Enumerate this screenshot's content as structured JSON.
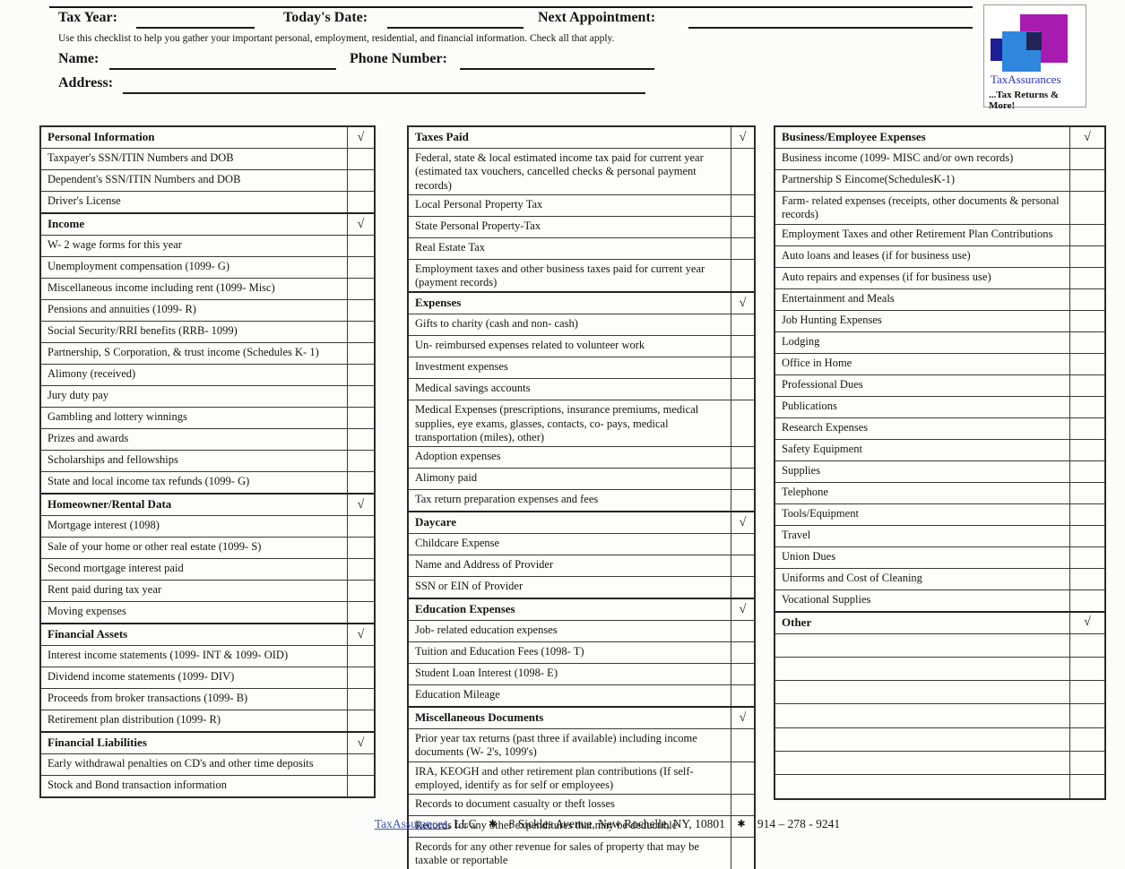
{
  "check_symbol": "√",
  "header": {
    "tax_year_label": "Tax Year:",
    "todays_date_label": "Today's Date:",
    "next_appointment_label": "Next Appointment:",
    "instructions": "Use this checklist to help you gather your important personal, employment, residential, and financial information.  Check all that apply.",
    "name_label": "Name:",
    "phone_label": "Phone Number:",
    "address_label": "Address:"
  },
  "logo": {
    "company": "TaxAssurances",
    "tagline": "...Tax Returns & More!",
    "colors": {
      "magenta": "#a81bb0",
      "blue": "#2e86dd",
      "navy": "#1d1d96",
      "overlap": "#232355"
    }
  },
  "columns": [
    {
      "sections": [
        {
          "title": "Personal Information",
          "checked": true,
          "items": [
            "Taxpayer's SSN/ITIN Numbers and DOB",
            "Dependent's SSN/ITIN Numbers and DOB",
            "Driver's License"
          ]
        },
        {
          "title": "Income",
          "checked": true,
          "items": [
            "W- 2 wage forms for this year",
            "Unemployment compensation (1099- G)",
            "Miscellaneous income including rent (1099- Misc)",
            "Pensions and annuities (1099- R)",
            "Social Security/RRI benefits (RRB- 1099)",
            "Partnership, S Corporation, & trust income (Schedules K- 1)",
            "Alimony (received)",
            "Jury duty pay",
            "Gambling and lottery winnings",
            "Prizes and awards",
            "Scholarships and fellowships",
            "State and local income tax refunds (1099- G)"
          ]
        },
        {
          "title": "Homeowner/Rental Data",
          "checked": true,
          "items": [
            "Mortgage interest (1098)",
            "Sale of your home or other real estate (1099- S)",
            "Second mortgage interest paid",
            "Rent paid during tax year",
            "Moving expenses"
          ]
        },
        {
          "title": "Financial Assets",
          "checked": true,
          "items": [
            "Interest income statements (1099- INT & 1099- OID)",
            "Dividend income statements (1099- DIV)",
            "Proceeds from broker transactions (1099- B)",
            "Retirement plan distribution (1099- R)"
          ]
        },
        {
          "title": "Financial Liabilities",
          "checked": true,
          "items": [
            "Early withdrawal penalties on CD's and other time deposits",
            "Stock and Bond transaction information"
          ]
        }
      ]
    },
    {
      "sections": [
        {
          "title": "Taxes Paid",
          "checked": true,
          "items": [
            "Federal, state & local estimated income tax paid for current year (estimated tax vouchers, cancelled checks & personal payment records)",
            "Local Personal Property Tax",
            "State Personal Property-Tax",
            "Real Estate Tax",
            "Employment taxes and other business taxes paid for current year (payment records)"
          ]
        },
        {
          "title": "Expenses",
          "checked": true,
          "items": [
            "Gifts to charity (cash and non- cash)",
            "Un- reimbursed expenses related to volunteer work",
            "Investment expenses",
            "Medical savings accounts",
            "Medical Expenses (prescriptions, insurance premiums, medical supplies, eye exams, glasses, contacts, co- pays, medical transportation (miles), other)",
            "Adoption expenses",
            "Alimony paid",
            "Tax return preparation expenses and fees"
          ]
        },
        {
          "title": "Daycare",
          "checked": true,
          "items": [
            "Childcare Expense",
            "Name and Address of Provider",
            "SSN or EIN of Provider"
          ]
        },
        {
          "title": "Education Expenses",
          "checked": true,
          "items": [
            "Job- related education expenses",
            "Tuition and Education Fees (1098- T)",
            "Student Loan Interest (1098- E)",
            "Education Mileage"
          ]
        },
        {
          "title": "Miscellaneous Documents",
          "checked": true,
          "items": [
            "Prior year tax returns (past three if available) including income documents (W- 2's, 1099's)",
            "IRA, KEOGH and other retirement plan contributions (If self- employed, identify as for self or employees)",
            "Records to document casualty or theft losses",
            "Records for any other expenditures that may be deductible",
            "Records for any other revenue for sales of property that may be taxable or reportable"
          ]
        }
      ]
    },
    {
      "sections": [
        {
          "title": "Business/Employee Expenses",
          "checked": true,
          "items": [
            "Business income (1099- MISC and/or own records)",
            "Partnership S Eincome(SchedulesK-1)",
            "Farm- related expenses (receipts, other documents & personal records)",
            "Employment Taxes and other Retirement Plan Contributions",
            "Auto loans and leases (if for business use)",
            "Auto repairs and expenses (if for business use)",
            "Entertainment and Meals",
            "Job Hunting Expenses",
            "Lodging",
            "Office in Home",
            "Professional Dues",
            "Publications",
            "Research Expenses",
            "Safety Equipment",
            "Supplies",
            "Telephone",
            "Tools/Equipment",
            "Travel",
            "Union Dues",
            "Uniforms and Cost of Cleaning",
            "Vocational Supplies"
          ]
        },
        {
          "title": "Other",
          "checked": true,
          "items": [
            "",
            "",
            "",
            "",
            "",
            "",
            ""
          ]
        }
      ]
    }
  ],
  "footer": {
    "company_link": "TaxAssurances",
    "company_suffix": ", LLC",
    "separator": "✱",
    "address": "8 Sickles Avenue, New Rochelle, NY,  10801",
    "phone": "914 – 278 - 9241"
  }
}
